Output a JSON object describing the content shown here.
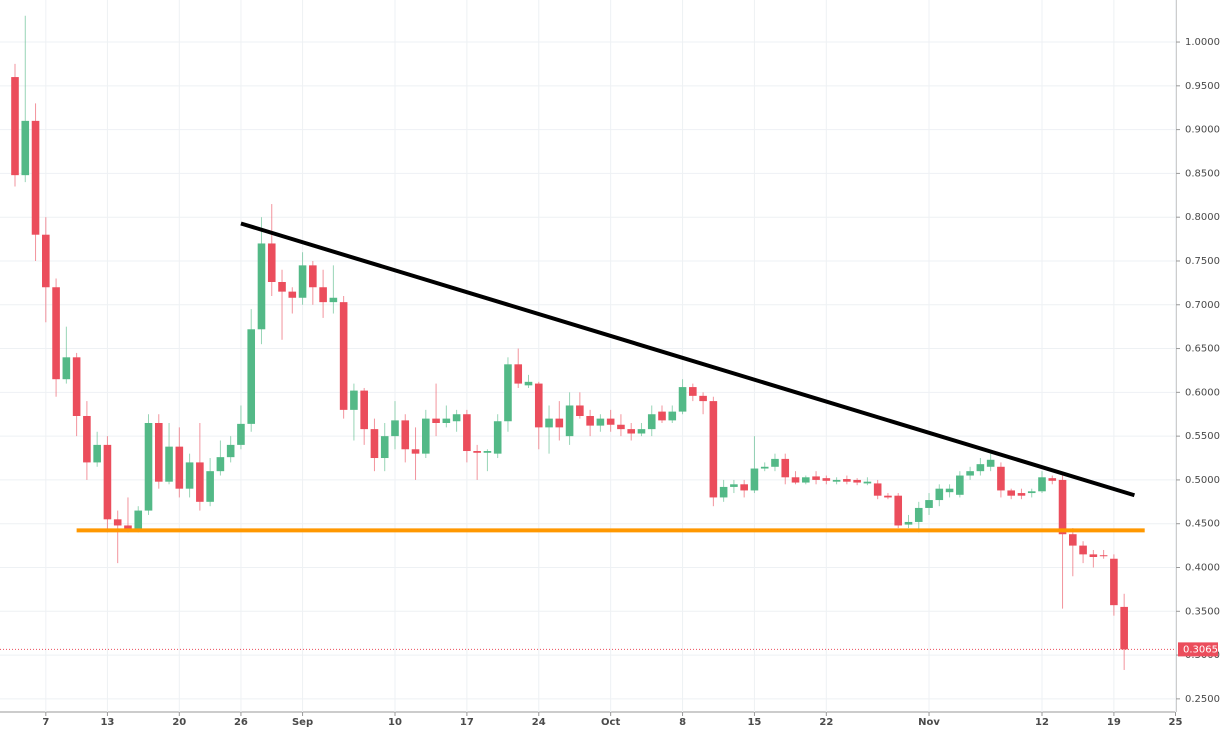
{
  "chart_data": {
    "type": "candlestick",
    "x": [
      "08-04",
      "08-05",
      "08-06",
      "08-07",
      "08-08",
      "08-09",
      "08-10",
      "08-11",
      "08-12",
      "08-13",
      "08-14",
      "08-15",
      "08-16",
      "08-17",
      "08-18",
      "08-19",
      "08-20",
      "08-21",
      "08-22",
      "08-23",
      "08-24",
      "08-25",
      "08-26",
      "08-27",
      "08-28",
      "08-29",
      "08-30",
      "08-31",
      "09-01",
      "09-02",
      "09-03",
      "09-04",
      "09-05",
      "09-06",
      "09-07",
      "09-08",
      "09-09",
      "09-10",
      "09-11",
      "09-12",
      "09-13",
      "09-14",
      "09-15",
      "09-16",
      "09-17",
      "09-18",
      "09-19",
      "09-20",
      "09-21",
      "09-22",
      "09-23",
      "09-24",
      "09-25",
      "09-26",
      "09-27",
      "09-28",
      "09-29",
      "09-30",
      "10-01",
      "10-02",
      "10-03",
      "10-04",
      "10-05",
      "10-06",
      "10-07",
      "10-08",
      "10-09",
      "10-10",
      "10-11",
      "10-12",
      "10-13",
      "10-14",
      "10-15",
      "10-16",
      "10-17",
      "10-18",
      "10-19",
      "10-20",
      "10-21",
      "10-22",
      "10-23",
      "10-24",
      "10-25",
      "10-26",
      "10-27",
      "10-28",
      "10-29",
      "10-30",
      "10-31",
      "11-01",
      "11-02",
      "11-03",
      "11-04",
      "11-05",
      "11-06",
      "11-07",
      "11-08",
      "11-09",
      "11-10",
      "11-11",
      "11-12",
      "11-13",
      "11-14",
      "11-15",
      "11-16",
      "11-17",
      "11-18",
      "11-19",
      "11-20"
    ],
    "open": [
      0.96,
      0.848,
      0.91,
      0.78,
      0.72,
      0.615,
      0.64,
      0.573,
      0.52,
      0.54,
      0.455,
      0.448,
      0.443,
      0.465,
      0.565,
      0.498,
      0.538,
      0.49,
      0.52,
      0.475,
      0.51,
      0.526,
      0.54,
      0.564,
      0.672,
      0.77,
      0.726,
      0.715,
      0.708,
      0.745,
      0.72,
      0.703,
      0.703,
      0.58,
      0.602,
      0.558,
      0.525,
      0.55,
      0.568,
      0.535,
      0.53,
      0.57,
      0.565,
      0.567,
      0.575,
      0.533,
      0.531,
      0.53,
      0.567,
      0.632,
      0.608,
      0.61,
      0.56,
      0.57,
      0.55,
      0.585,
      0.573,
      0.562,
      0.57,
      0.563,
      0.558,
      0.553,
      0.558,
      0.578,
      0.568,
      0.578,
      0.606,
      0.596,
      0.59,
      0.48,
      0.492,
      0.495,
      0.488,
      0.513,
      0.515,
      0.524,
      0.503,
      0.497,
      0.504,
      0.502,
      0.498,
      0.501,
      0.5,
      0.496,
      0.496,
      0.482,
      0.482,
      0.449,
      0.452,
      0.468,
      0.477,
      0.486,
      0.483,
      0.505,
      0.51,
      0.515,
      0.515,
      0.488,
      0.485,
      0.485,
      0.487,
      0.502,
      0.5,
      0.438,
      0.425,
      0.415,
      0.414,
      0.41,
      0.355
    ],
    "high": [
      0.975,
      1.03,
      0.93,
      0.8,
      0.73,
      0.675,
      0.645,
      0.59,
      0.555,
      0.55,
      0.465,
      0.48,
      0.47,
      0.575,
      0.575,
      0.565,
      0.56,
      0.53,
      0.565,
      0.525,
      0.545,
      0.55,
      0.585,
      0.695,
      0.8,
      0.815,
      0.74,
      0.72,
      0.76,
      0.75,
      0.74,
      0.745,
      0.71,
      0.61,
      0.605,
      0.57,
      0.565,
      0.59,
      0.575,
      0.56,
      0.58,
      0.61,
      0.585,
      0.58,
      0.58,
      0.54,
      0.535,
      0.575,
      0.64,
      0.65,
      0.62,
      0.612,
      0.585,
      0.59,
      0.6,
      0.6,
      0.58,
      0.575,
      0.58,
      0.575,
      0.565,
      0.565,
      0.585,
      0.585,
      0.585,
      0.615,
      0.61,
      0.6,
      0.595,
      0.5,
      0.5,
      0.5,
      0.55,
      0.52,
      0.53,
      0.53,
      0.51,
      0.505,
      0.51,
      0.505,
      0.503,
      0.505,
      0.502,
      0.503,
      0.5,
      0.485,
      0.485,
      0.46,
      0.475,
      0.485,
      0.495,
      0.495,
      0.51,
      0.515,
      0.525,
      0.53,
      0.52,
      0.49,
      0.49,
      0.49,
      0.51,
      0.505,
      0.505,
      0.445,
      0.43,
      0.42,
      0.42,
      0.415,
      0.37
    ],
    "low": [
      0.835,
      0.84,
      0.75,
      0.68,
      0.595,
      0.61,
      0.55,
      0.5,
      0.515,
      0.44,
      0.405,
      0.44,
      0.44,
      0.46,
      0.49,
      0.495,
      0.48,
      0.48,
      0.465,
      0.47,
      0.505,
      0.52,
      0.535,
      0.555,
      0.655,
      0.71,
      0.66,
      0.69,
      0.7,
      0.7,
      0.685,
      0.69,
      0.57,
      0.545,
      0.54,
      0.51,
      0.51,
      0.535,
      0.52,
      0.5,
      0.525,
      0.55,
      0.56,
      0.555,
      0.52,
      0.5,
      0.51,
      0.525,
      0.555,
      0.605,
      0.605,
      0.535,
      0.53,
      0.545,
      0.54,
      0.57,
      0.55,
      0.555,
      0.555,
      0.55,
      0.545,
      0.55,
      0.55,
      0.565,
      0.565,
      0.575,
      0.59,
      0.575,
      0.47,
      0.475,
      0.485,
      0.48,
      0.485,
      0.51,
      0.51,
      0.495,
      0.495,
      0.495,
      0.495,
      0.495,
      0.495,
      0.495,
      0.494,
      0.494,
      0.478,
      0.478,
      0.445,
      0.445,
      0.44,
      0.46,
      0.47,
      0.48,
      0.48,
      0.5,
      0.505,
      0.51,
      0.48,
      0.478,
      0.478,
      0.48,
      0.485,
      0.495,
      0.353,
      0.39,
      0.405,
      0.4,
      0.41,
      0.345,
      0.283
    ],
    "close": [
      0.848,
      0.91,
      0.78,
      0.72,
      0.615,
      0.64,
      0.573,
      0.52,
      0.54,
      0.455,
      0.448,
      0.443,
      0.465,
      0.565,
      0.498,
      0.538,
      0.49,
      0.52,
      0.475,
      0.51,
      0.526,
      0.54,
      0.564,
      0.672,
      0.77,
      0.726,
      0.715,
      0.708,
      0.745,
      0.72,
      0.703,
      0.708,
      0.58,
      0.602,
      0.558,
      0.525,
      0.55,
      0.568,
      0.535,
      0.53,
      0.57,
      0.565,
      0.57,
      0.575,
      0.533,
      0.531,
      0.533,
      0.567,
      0.632,
      0.61,
      0.612,
      0.56,
      0.57,
      0.56,
      0.585,
      0.573,
      0.562,
      0.57,
      0.563,
      0.558,
      0.553,
      0.558,
      0.575,
      0.568,
      0.578,
      0.606,
      0.596,
      0.59,
      0.48,
      0.492,
      0.495,
      0.488,
      0.513,
      0.515,
      0.524,
      0.503,
      0.497,
      0.503,
      0.5,
      0.499,
      0.5,
      0.498,
      0.497,
      0.498,
      0.482,
      0.48,
      0.448,
      0.452,
      0.468,
      0.477,
      0.49,
      0.49,
      0.505,
      0.51,
      0.518,
      0.523,
      0.488,
      0.482,
      0.482,
      0.487,
      0.503,
      0.499,
      0.438,
      0.425,
      0.415,
      0.412,
      0.413,
      0.357,
      0.3065
    ],
    "up_color": "#53b987",
    "down_color": "#eb4d5c",
    "ylim": [
      0.235,
      1.048
    ],
    "yticks": [
      {
        "value": 0.25,
        "label": "0.2500"
      },
      {
        "value": 0.3,
        "label": "0.3000"
      },
      {
        "value": 0.35,
        "label": "0.3500"
      },
      {
        "value": 0.4,
        "label": "0.4000"
      },
      {
        "value": 0.45,
        "label": "0.4500"
      },
      {
        "value": 0.5,
        "label": "0.5000"
      },
      {
        "value": 0.55,
        "label": "0.5500"
      },
      {
        "value": 0.6,
        "label": "0.6000"
      },
      {
        "value": 0.65,
        "label": "0.6500"
      },
      {
        "value": 0.7,
        "label": "0.7000"
      },
      {
        "value": 0.75,
        "label": "0.7500"
      },
      {
        "value": 0.8,
        "label": "0.8000"
      },
      {
        "value": 0.85,
        "label": "0.8500"
      },
      {
        "value": 0.9,
        "label": "0.9000"
      },
      {
        "value": 0.95,
        "label": "0.9500"
      },
      {
        "value": 1.0,
        "label": "1.0000"
      }
    ],
    "xticks": [
      {
        "value": "08-07",
        "label": "7"
      },
      {
        "value": "08-13",
        "label": "13"
      },
      {
        "value": "08-20",
        "label": "20"
      },
      {
        "value": "08-26",
        "label": "26"
      },
      {
        "value": "09-01",
        "label": "Sep"
      },
      {
        "value": "09-10",
        "label": "10"
      },
      {
        "value": "09-17",
        "label": "17"
      },
      {
        "value": "09-24",
        "label": "24"
      },
      {
        "value": "10-01",
        "label": "Oct"
      },
      {
        "value": "10-08",
        "label": "8"
      },
      {
        "value": "10-15",
        "label": "15"
      },
      {
        "value": "10-22",
        "label": "22"
      },
      {
        "value": "11-01",
        "label": "Nov"
      },
      {
        "value": "11-12",
        "label": "12"
      },
      {
        "value": "11-19",
        "label": "19"
      },
      {
        "value": "11-25",
        "label": "25"
      }
    ],
    "grid": true,
    "last_price": {
      "value": 0.3065,
      "label": "0.3065",
      "color": "#eb4d5c"
    },
    "lines": [
      {
        "color": "#000000",
        "x": [
          "08-26",
          "11-21"
        ],
        "y": [
          0.7928,
          0.4825
        ]
      },
      {
        "color": "#ff9800",
        "x": [
          "08-10",
          "11-22"
        ],
        "y": [
          0.4424,
          0.4424
        ]
      }
    ]
  }
}
